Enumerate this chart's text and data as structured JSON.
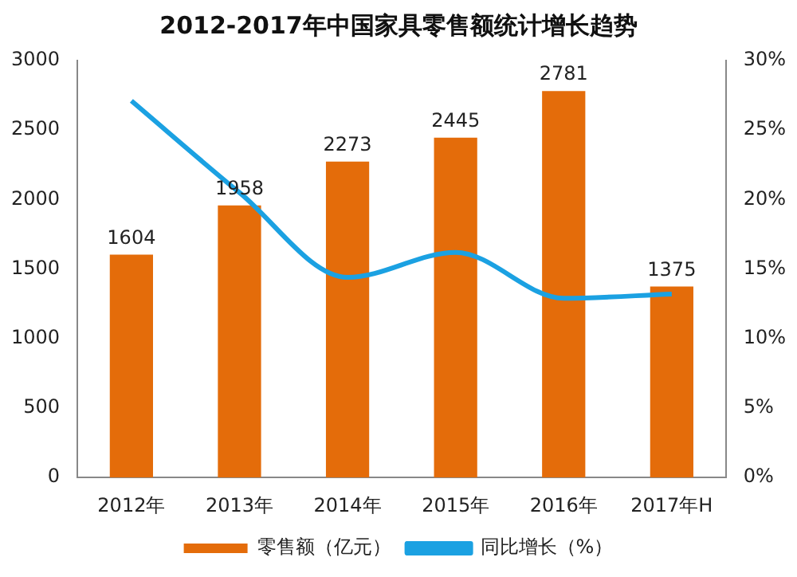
{
  "chart_data": {
    "type": "bar",
    "title": "2012-2017年中国家具零售额统计增长趋势",
    "categories": [
      "2012年",
      "2013年",
      "2014年",
      "2015年",
      "2016年",
      "2017年H"
    ],
    "series": [
      {
        "name": "零售额（亿元）",
        "color": "#e46c0a",
        "values": [
          1604,
          1958,
          2273,
          2445,
          2781,
          1375
        ],
        "value_labels": [
          "1604",
          "1958",
          "2273",
          "2445",
          "2781",
          "1375"
        ]
      },
      {
        "name": "同比增长（%）",
        "type": "line",
        "axis": "y2",
        "color": "#1ba1e2",
        "values": [
          27.1,
          20.5,
          14.4,
          16.2,
          12.9,
          13.2
        ]
      }
    ],
    "ylim": [
      0,
      3000
    ],
    "yticks": [
      0,
      500,
      1000,
      1500,
      2000,
      2500,
      3000
    ],
    "y2lim": [
      0,
      30
    ],
    "y2ticks": [
      {
        "value": 0,
        "label": "0%"
      },
      {
        "value": 5,
        "label": "5%"
      },
      {
        "value": 10,
        "label": "10%"
      },
      {
        "value": 15,
        "label": "15%"
      },
      {
        "value": 20,
        "label": "20%"
      },
      {
        "value": 25,
        "label": "25%"
      },
      {
        "value": 30,
        "label": "30%"
      }
    ],
    "grid": false,
    "legend": "bottom",
    "marker": "none"
  }
}
